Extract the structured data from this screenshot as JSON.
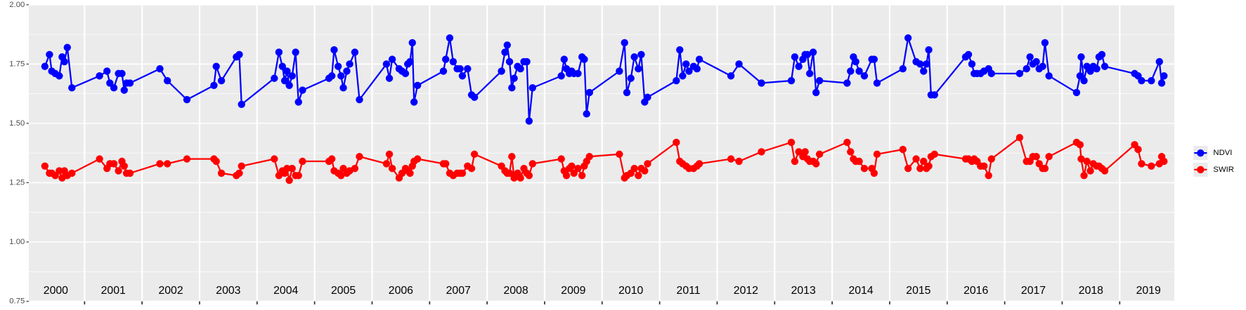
{
  "chart_data": {
    "type": "line",
    "x": [
      2000.31,
      2000.39,
      2000.43,
      2000.49,
      2000.56,
      2000.61,
      2000.65,
      2000.7,
      2000.78,
      2001.26,
      2001.39,
      2001.44,
      2001.51,
      2001.59,
      2001.65,
      2001.69,
      2001.73,
      2001.79,
      2002.31,
      2002.44,
      2002.78,
      2003.25,
      2003.29,
      2003.38,
      2003.64,
      2003.69,
      2003.73,
      2004.3,
      2004.38,
      2004.44,
      2004.48,
      2004.52,
      2004.56,
      2004.61,
      2004.67,
      2004.72,
      2004.79,
      2005.25,
      2005.3,
      2005.34,
      2005.41,
      2005.46,
      2005.5,
      2005.56,
      2005.61,
      2005.7,
      2005.78,
      2006.25,
      2006.3,
      2006.35,
      2006.47,
      2006.52,
      2006.58,
      2006.62,
      2006.66,
      2006.7,
      2006.73,
      2006.79,
      2007.24,
      2007.28,
      2007.35,
      2007.41,
      2007.48,
      2007.53,
      2007.57,
      2007.66,
      2007.73,
      2007.78,
      2008.25,
      2008.31,
      2008.35,
      2008.39,
      2008.43,
      2008.47,
      2008.53,
      2008.58,
      2008.64,
      2008.69,
      2008.73,
      2008.79,
      2009.29,
      2009.34,
      2009.38,
      2009.43,
      2009.47,
      2009.51,
      2009.58,
      2009.65,
      2009.69,
      2009.73,
      2009.78,
      2010.3,
      2010.39,
      2010.43,
      2010.5,
      2010.56,
      2010.63,
      2010.68,
      2010.74,
      2010.79,
      2011.29,
      2011.35,
      2011.4,
      2011.46,
      2011.51,
      2011.59,
      2011.65,
      2011.69,
      2012.24,
      2012.38,
      2012.77,
      2013.29,
      2013.35,
      2013.42,
      2013.49,
      2013.53,
      2013.57,
      2013.61,
      2013.67,
      2013.72,
      2013.78,
      2014.26,
      2014.32,
      2014.37,
      2014.41,
      2014.47,
      2014.56,
      2014.69,
      2014.73,
      2014.78,
      2015.23,
      2015.32,
      2015.46,
      2015.53,
      2015.59,
      2015.64,
      2015.68,
      2015.72,
      2015.78,
      2016.32,
      2016.37,
      2016.43,
      2016.47,
      2016.52,
      2016.58,
      2016.64,
      2016.72,
      2016.77,
      2017.26,
      2017.38,
      2017.44,
      2017.49,
      2017.55,
      2017.6,
      2017.66,
      2017.7,
      2017.77,
      2018.25,
      2018.31,
      2018.33,
      2018.38,
      2018.43,
      2018.49,
      2018.54,
      2018.6,
      2018.64,
      2018.69,
      2018.74,
      2019.26,
      2019.32,
      2019.38,
      2019.55,
      2019.69,
      2019.73,
      2019.77
    ],
    "series": [
      {
        "name": "NDVI",
        "color": "#0000ff",
        "values": [
          1.74,
          1.79,
          1.72,
          1.71,
          1.7,
          1.78,
          1.76,
          1.82,
          1.65,
          1.7,
          1.72,
          1.67,
          1.65,
          1.71,
          1.71,
          1.64,
          1.67,
          1.67,
          1.73,
          1.68,
          1.6,
          1.66,
          1.74,
          1.68,
          1.78,
          1.79,
          1.58,
          1.69,
          1.8,
          1.74,
          1.68,
          1.72,
          1.66,
          1.7,
          1.8,
          1.59,
          1.64,
          1.69,
          1.7,
          1.81,
          1.74,
          1.7,
          1.65,
          1.72,
          1.75,
          1.8,
          1.6,
          1.75,
          1.69,
          1.77,
          1.73,
          1.72,
          1.71,
          1.75,
          1.76,
          1.84,
          1.59,
          1.66,
          1.72,
          1.77,
          1.86,
          1.76,
          1.73,
          1.73,
          1.7,
          1.73,
          1.62,
          1.61,
          1.72,
          1.8,
          1.83,
          1.76,
          1.65,
          1.69,
          1.74,
          1.73,
          1.76,
          1.76,
          1.51,
          1.65,
          1.7,
          1.77,
          1.73,
          1.71,
          1.72,
          1.71,
          1.71,
          1.78,
          1.77,
          1.54,
          1.63,
          1.72,
          1.84,
          1.63,
          1.69,
          1.78,
          1.73,
          1.79,
          1.59,
          1.61,
          1.68,
          1.81,
          1.7,
          1.75,
          1.72,
          1.74,
          1.73,
          1.77,
          1.7,
          1.75,
          1.67,
          1.68,
          1.78,
          1.74,
          1.77,
          1.79,
          1.79,
          1.71,
          1.8,
          1.63,
          1.68,
          1.67,
          1.72,
          1.78,
          1.76,
          1.72,
          1.7,
          1.77,
          1.77,
          1.67,
          1.73,
          1.86,
          1.76,
          1.75,
          1.72,
          1.75,
          1.81,
          1.62,
          1.62,
          1.78,
          1.79,
          1.75,
          1.71,
          1.71,
          1.71,
          1.72,
          1.73,
          1.71,
          1.71,
          1.73,
          1.78,
          1.75,
          1.76,
          1.73,
          1.74,
          1.84,
          1.7,
          1.63,
          1.7,
          1.78,
          1.68,
          1.74,
          1.72,
          1.74,
          1.73,
          1.78,
          1.79,
          1.74,
          1.71,
          1.7,
          1.68,
          1.68,
          1.76,
          1.67,
          1.7
        ]
      },
      {
        "name": "SWIR",
        "color": "#ff0000",
        "values": [
          1.32,
          1.29,
          1.29,
          1.28,
          1.3,
          1.27,
          1.3,
          1.28,
          1.29,
          1.35,
          1.31,
          1.33,
          1.33,
          1.3,
          1.34,
          1.32,
          1.29,
          1.29,
          1.33,
          1.33,
          1.35,
          1.35,
          1.34,
          1.29,
          1.28,
          1.29,
          1.32,
          1.35,
          1.28,
          1.3,
          1.29,
          1.31,
          1.26,
          1.31,
          1.28,
          1.28,
          1.34,
          1.34,
          1.35,
          1.3,
          1.29,
          1.28,
          1.31,
          1.29,
          1.3,
          1.31,
          1.36,
          1.33,
          1.37,
          1.31,
          1.27,
          1.29,
          1.31,
          1.3,
          1.29,
          1.32,
          1.34,
          1.35,
          1.33,
          1.33,
          1.29,
          1.28,
          1.29,
          1.29,
          1.29,
          1.32,
          1.31,
          1.37,
          1.32,
          1.3,
          1.29,
          1.29,
          1.36,
          1.27,
          1.29,
          1.27,
          1.31,
          1.29,
          1.28,
          1.33,
          1.35,
          1.3,
          1.28,
          1.31,
          1.32,
          1.29,
          1.31,
          1.28,
          1.32,
          1.34,
          1.36,
          1.37,
          1.27,
          1.28,
          1.29,
          1.31,
          1.28,
          1.31,
          1.3,
          1.33,
          1.42,
          1.34,
          1.33,
          1.32,
          1.31,
          1.31,
          1.32,
          1.33,
          1.35,
          1.34,
          1.38,
          1.42,
          1.34,
          1.38,
          1.36,
          1.38,
          1.35,
          1.34,
          1.34,
          1.33,
          1.37,
          1.42,
          1.38,
          1.35,
          1.34,
          1.34,
          1.31,
          1.31,
          1.29,
          1.37,
          1.39,
          1.31,
          1.35,
          1.31,
          1.34,
          1.31,
          1.32,
          1.36,
          1.37,
          1.35,
          1.35,
          1.34,
          1.35,
          1.34,
          1.32,
          1.32,
          1.28,
          1.35,
          1.44,
          1.34,
          1.34,
          1.36,
          1.36,
          1.33,
          1.31,
          1.31,
          1.36,
          1.42,
          1.41,
          1.35,
          1.28,
          1.34,
          1.3,
          1.33,
          1.32,
          1.32,
          1.31,
          1.3,
          1.41,
          1.39,
          1.33,
          1.32,
          1.33,
          1.36,
          1.34
        ]
      }
    ],
    "xlim": [
      2000.03,
      2019.95
    ],
    "xticks": [
      2001,
      2002,
      2003,
      2004,
      2005,
      2006,
      2007,
      2008,
      2009,
      2010,
      2011,
      2012,
      2013,
      2014,
      2015,
      2016,
      2017,
      2018,
      2019
    ],
    "ylim": [
      0.75,
      2.0
    ],
    "yticks": [
      0.75,
      {
        "value": 1,
        "label": "1.00"
      },
      1.25,
      {
        "value": 1.5,
        "label": "1.50"
      },
      1.75,
      {
        "value": 2,
        "label": "2.00"
      }
    ],
    "annotations": [
      {
        "x": 2000.5,
        "text": "2000"
      },
      {
        "x": 2001.5,
        "text": "2001"
      },
      {
        "x": 2002.5,
        "text": "2002"
      },
      {
        "x": 2003.5,
        "text": "2003"
      },
      {
        "x": 2004.5,
        "text": "2004"
      },
      {
        "x": 2005.5,
        "text": "2005"
      },
      {
        "x": 2006.5,
        "text": "2006"
      },
      {
        "x": 2007.5,
        "text": "2007"
      },
      {
        "x": 2008.5,
        "text": "2008"
      },
      {
        "x": 2009.5,
        "text": "2009"
      },
      {
        "x": 2010.5,
        "text": "2010"
      },
      {
        "x": 2011.5,
        "text": "2011"
      },
      {
        "x": 2012.5,
        "text": "2012"
      },
      {
        "x": 2013.5,
        "text": "2013"
      },
      {
        "x": 2014.5,
        "text": "2014"
      },
      {
        "x": 2015.5,
        "text": "2015"
      },
      {
        "x": 2016.5,
        "text": "2016"
      },
      {
        "x": 2017.5,
        "text": "2017"
      },
      {
        "x": 2018.5,
        "text": "2018"
      },
      {
        "x": 2019.5,
        "text": "2019"
      }
    ],
    "grid": true,
    "legend": "right"
  }
}
